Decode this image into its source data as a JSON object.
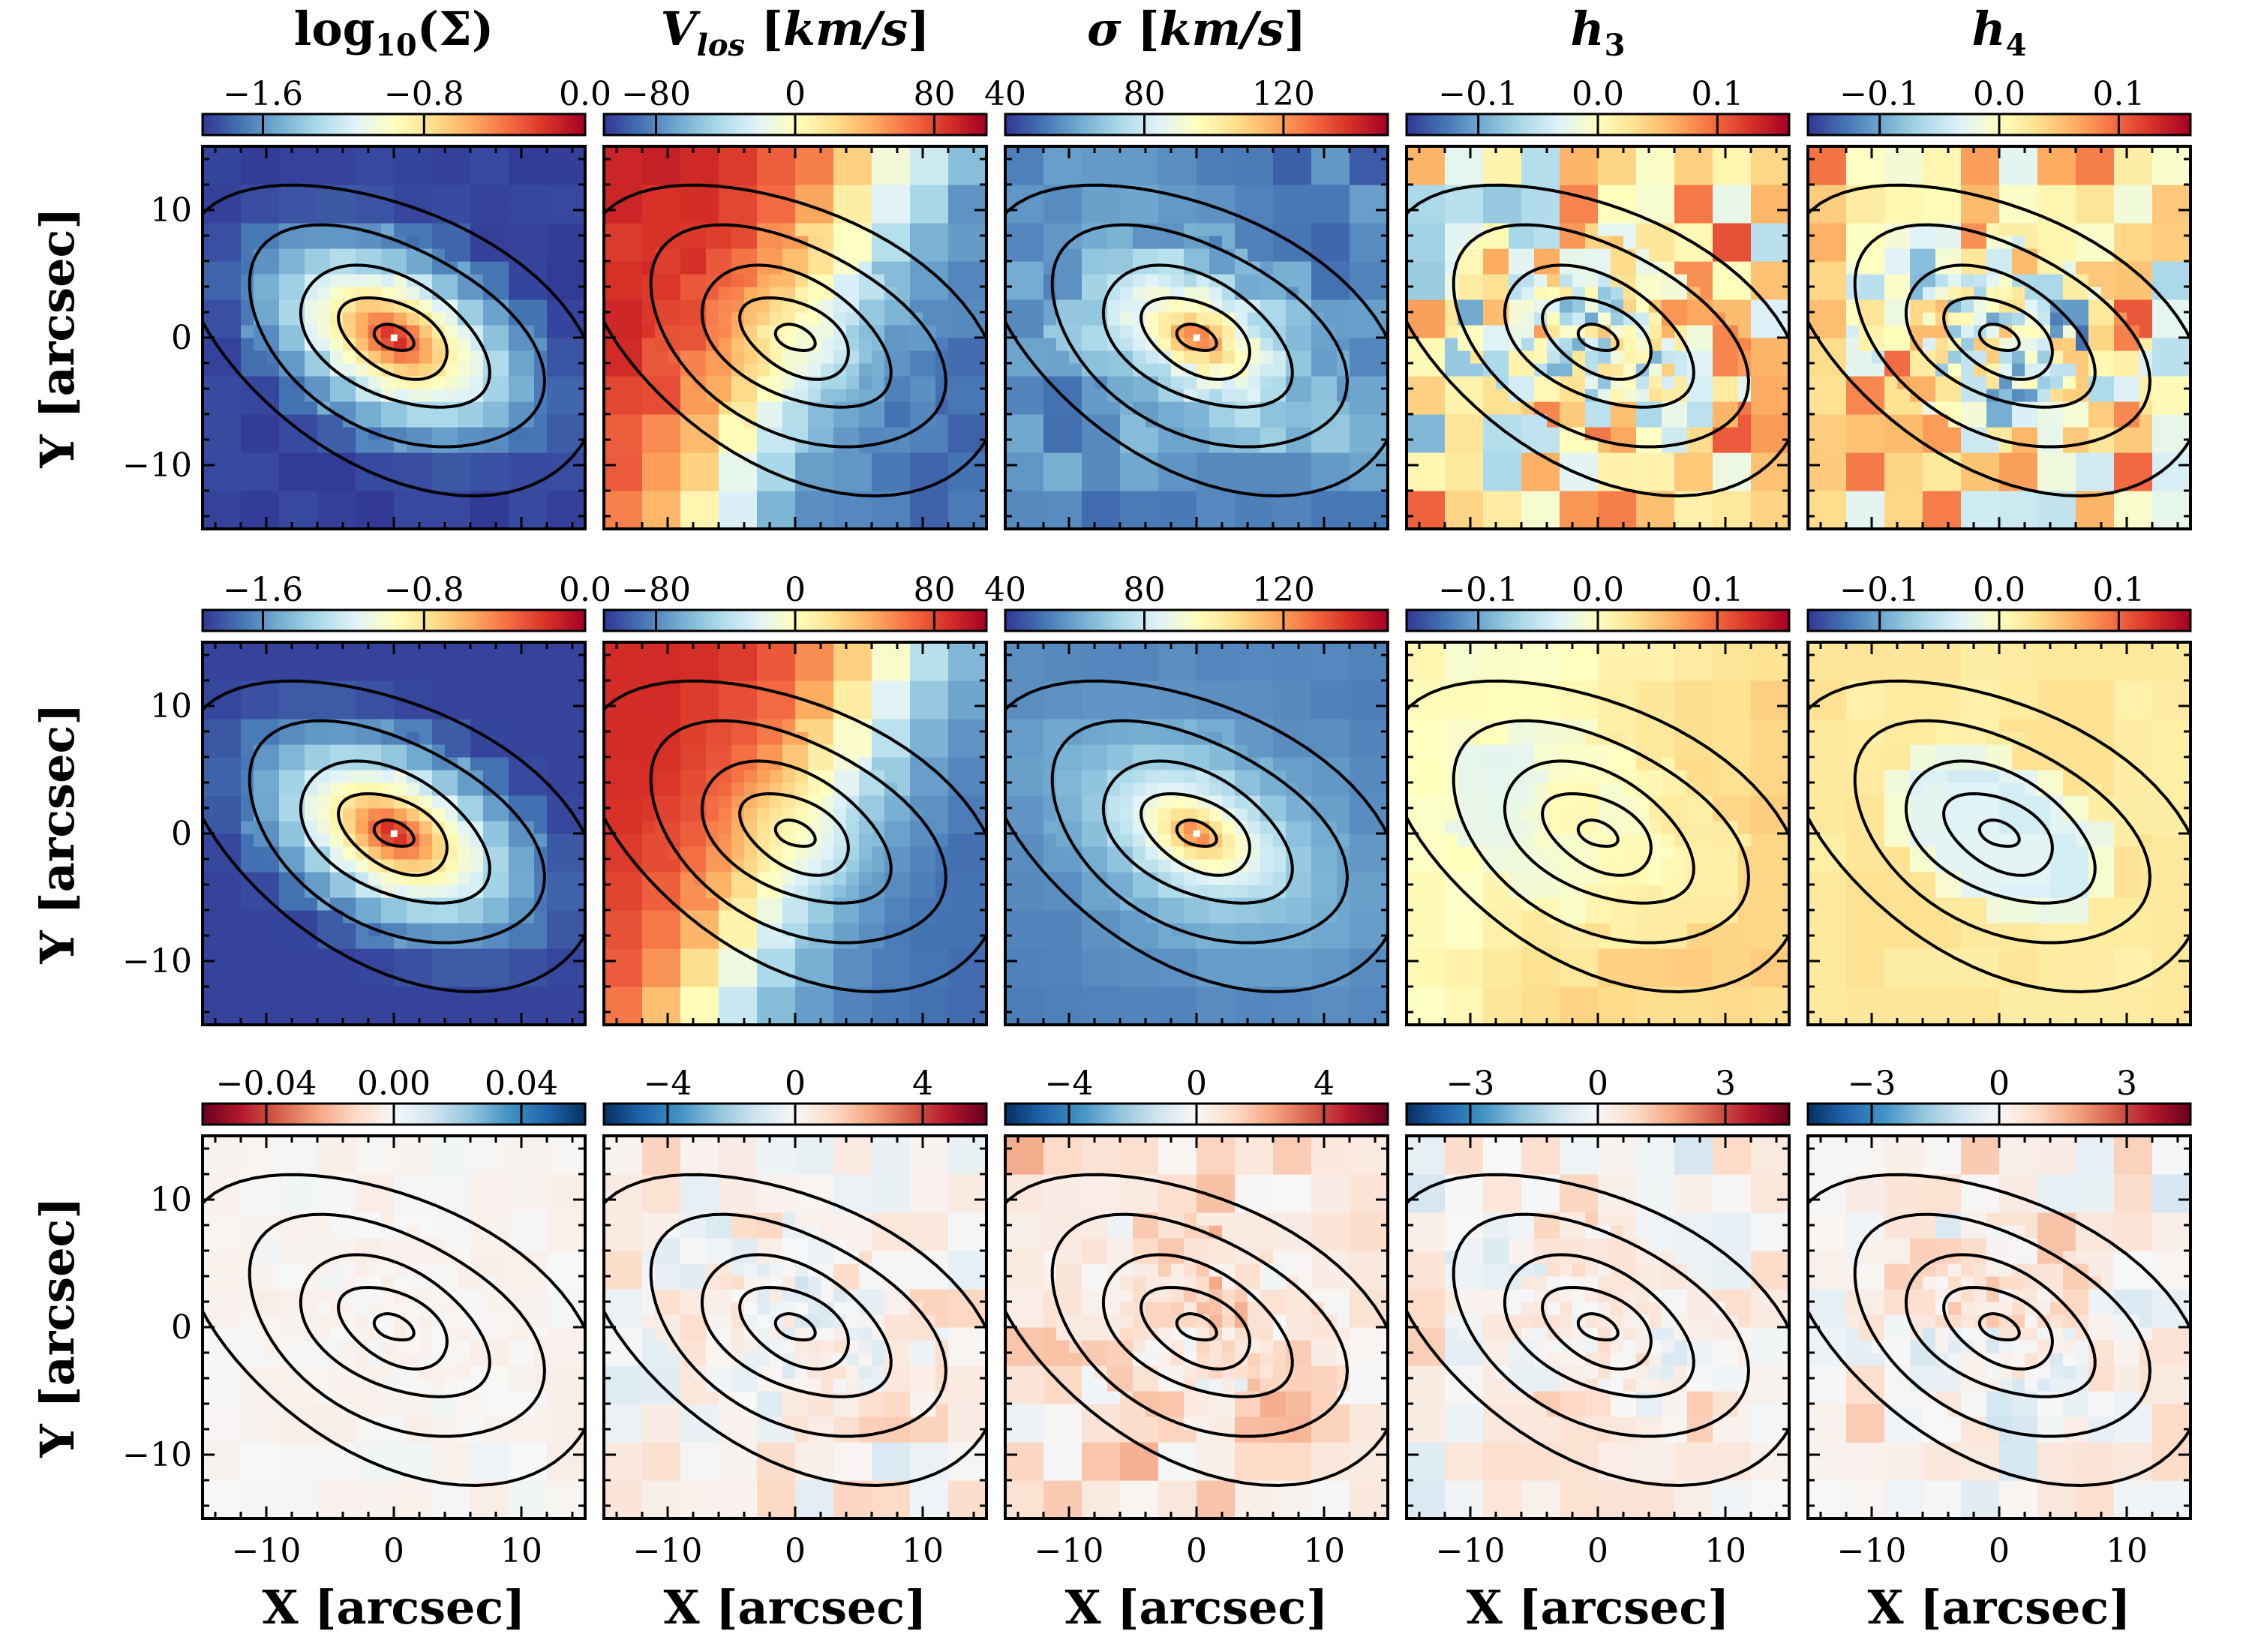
{
  "chart_data": {
    "type": "heatmap",
    "columns": [
      {
        "title": "log₁₀(Σ)"
      },
      {
        "title": "V_los [km/s]"
      },
      {
        "title": "σ [km/s]"
      },
      {
        "title": "h₃"
      },
      {
        "title": "h₄"
      }
    ],
    "x_axis_label": "X [arcsec]",
    "y_axis_label": "Y [arcsec]",
    "x_ticks": [
      -10,
      0,
      10
    ],
    "y_ticks": [
      10,
      0,
      -10
    ],
    "x_tick_labels": [
      "−10",
      "0",
      "10"
    ],
    "y_tick_labels": [
      "10",
      "0",
      "−10"
    ],
    "xlim": [
      -15,
      15
    ],
    "ylim": [
      -15,
      15
    ],
    "contours": "isophotes of surface brightness (black)",
    "colorbars": [
      [
        {
          "cmap": "RdYlBu_r",
          "range": [
            -1.9,
            0.0
          ],
          "ticks": [
            -1.6,
            -0.8,
            0.0
          ],
          "labels": [
            "−1.6",
            "−0.8",
            "0.0"
          ]
        },
        {
          "cmap": "RdYlBu_r",
          "range": [
            -110,
            110
          ],
          "ticks": [
            -80,
            0,
            80
          ],
          "labels": [
            "−80",
            "0",
            "80"
          ]
        },
        {
          "cmap": "RdYlBu_r",
          "range": [
            40,
            150
          ],
          "ticks": [
            40,
            80,
            120
          ],
          "labels": [
            "40",
            "80",
            "120"
          ]
        },
        {
          "cmap": "RdYlBu_r",
          "range": [
            -0.16,
            0.16
          ],
          "ticks": [
            -0.1,
            0.0,
            0.1
          ],
          "labels": [
            "−0.1",
            "0.0",
            "0.1"
          ]
        },
        {
          "cmap": "RdYlBu_r",
          "range": [
            -0.16,
            0.16
          ],
          "ticks": [
            -0.1,
            0.0,
            0.1
          ],
          "labels": [
            "−0.1",
            "0.0",
            "0.1"
          ]
        }
      ],
      [
        {
          "cmap": "RdYlBu_r",
          "range": [
            -1.9,
            0.0
          ],
          "ticks": [
            -1.6,
            -0.8,
            0.0
          ],
          "labels": [
            "−1.6",
            "−0.8",
            "0.0"
          ]
        },
        {
          "cmap": "RdYlBu_r",
          "range": [
            -110,
            110
          ],
          "ticks": [
            -80,
            0,
            80
          ],
          "labels": [
            "−80",
            "0",
            "80"
          ]
        },
        {
          "cmap": "RdYlBu_r",
          "range": [
            40,
            150
          ],
          "ticks": [
            40,
            80,
            120
          ],
          "labels": [
            "40",
            "80",
            "120"
          ]
        },
        {
          "cmap": "RdYlBu_r",
          "range": [
            -0.16,
            0.16
          ],
          "ticks": [
            -0.1,
            0.0,
            0.1
          ],
          "labels": [
            "−0.1",
            "0.0",
            "0.1"
          ]
        },
        {
          "cmap": "RdYlBu_r",
          "range": [
            -0.16,
            0.16
          ],
          "ticks": [
            -0.1,
            0.0,
            0.1
          ],
          "labels": [
            "−0.1",
            "0.0",
            "0.1"
          ]
        }
      ],
      [
        {
          "cmap": "RdBu",
          "range": [
            -0.06,
            0.06
          ],
          "ticks": [
            -0.04,
            0.0,
            0.04
          ],
          "labels": [
            "−0.04",
            "0.00",
            "0.04"
          ]
        },
        {
          "cmap": "RdBu_r",
          "range": [
            -6,
            6
          ],
          "ticks": [
            -4,
            0,
            4
          ],
          "labels": [
            "−4",
            "0",
            "4"
          ]
        },
        {
          "cmap": "RdBu_r",
          "range": [
            -6,
            6
          ],
          "ticks": [
            -4,
            0,
            4
          ],
          "labels": [
            "−4",
            "0",
            "4"
          ]
        },
        {
          "cmap": "RdBu_r",
          "range": [
            -4.5,
            4.5
          ],
          "ticks": [
            -3,
            0,
            3
          ],
          "labels": [
            "−3",
            "0",
            "3"
          ]
        },
        {
          "cmap": "RdBu_r",
          "range": [
            -4.5,
            4.5
          ],
          "ticks": [
            -3,
            0,
            3
          ],
          "labels": [
            "−3",
            "0",
            "3"
          ]
        }
      ]
    ],
    "grid": false,
    "rows": 3
  }
}
